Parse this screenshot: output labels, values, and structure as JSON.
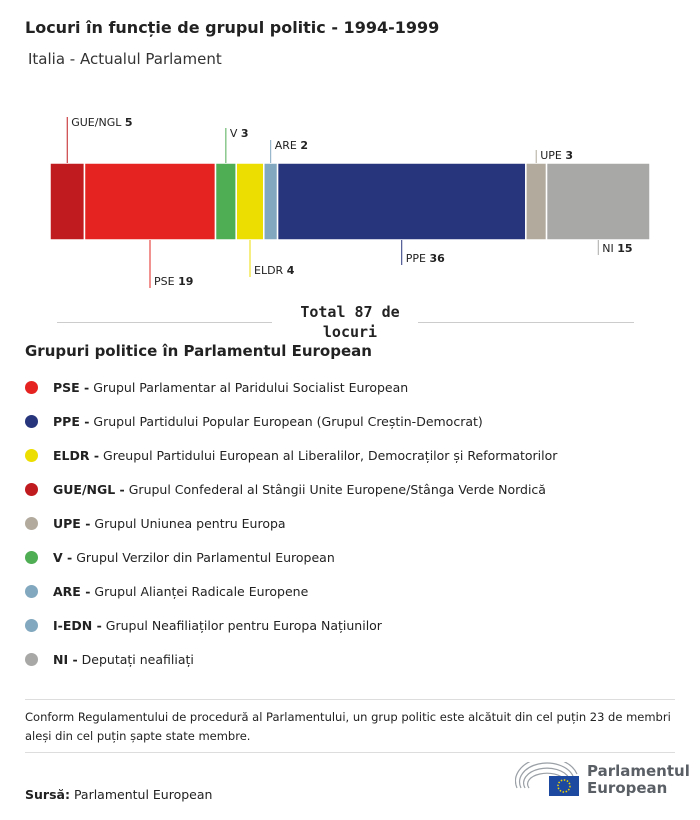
{
  "title": "Locuri în funcție de grupul politic - 1994-1999",
  "subtitle": "Italia - Actualul Parlament",
  "chart_data": {
    "type": "bar",
    "orientation": "stacked-horizontal",
    "categories": [
      "GUE/NGL",
      "PSE",
      "V",
      "ELDR",
      "ARE",
      "PPE",
      "UPE",
      "NI"
    ],
    "values": [
      5,
      19,
      3,
      4,
      2,
      36,
      3,
      15
    ],
    "colors": [
      "#c01b1f",
      "#e52421",
      "#4fad54",
      "#ecde00",
      "#82a8bf",
      "#27367c",
      "#b2aa9c",
      "#a8a8a7"
    ],
    "label_side": [
      "top",
      "bottom",
      "top",
      "bottom",
      "top",
      "bottom",
      "top",
      "bottom"
    ],
    "total_label": "Total 87 de locuri"
  },
  "legend_title": "Grupuri politice în Parlamentul European",
  "legend": [
    {
      "abbr": "PSE -",
      "name": "Grupul Parlamentar al Paridului Socialist European",
      "color": "#e52421"
    },
    {
      "abbr": "PPE -",
      "name": "Grupul Partidului Popular European (Grupul Creștin-Democrat)",
      "color": "#27367c"
    },
    {
      "abbr": "ELDR -",
      "name": "Greupul Partidului European al Liberalilor, Democraților și Reformatorilor",
      "color": "#ecde00"
    },
    {
      "abbr": "GUE/NGL -",
      "name": "Grupul Confederal al Stângii Unite Europene/Stânga Verde Nordică",
      "color": "#c01b1f"
    },
    {
      "abbr": "UPE -",
      "name": "Grupul Uniunea pentru Europa",
      "color": "#b2aa9c"
    },
    {
      "abbr": "V -",
      "name": "Grupul Verzilor din Parlamentul European",
      "color": "#4fad54"
    },
    {
      "abbr": "ARE -",
      "name": "Grupul Alianței Radicale Europene",
      "color": "#82a8bf"
    },
    {
      "abbr": "I-EDN -",
      "name": "Grupul Neafiliaților pentru Europa Națiunilor",
      "color": "#82a8bf"
    },
    {
      "abbr": "NI -",
      "name": "Deputați neafiliați",
      "color": "#a8a8a7"
    }
  ],
  "note": "Conform Regulamentului de procedură al Parlamentului, un grup politic este alcătuit din cel puțin 23 de membri aleși din cel puțin șapte state membre.",
  "source_label": "Sursă:",
  "source": "Parlamentul European",
  "logo": {
    "line1": "Parlamentul",
    "line2": "European"
  }
}
